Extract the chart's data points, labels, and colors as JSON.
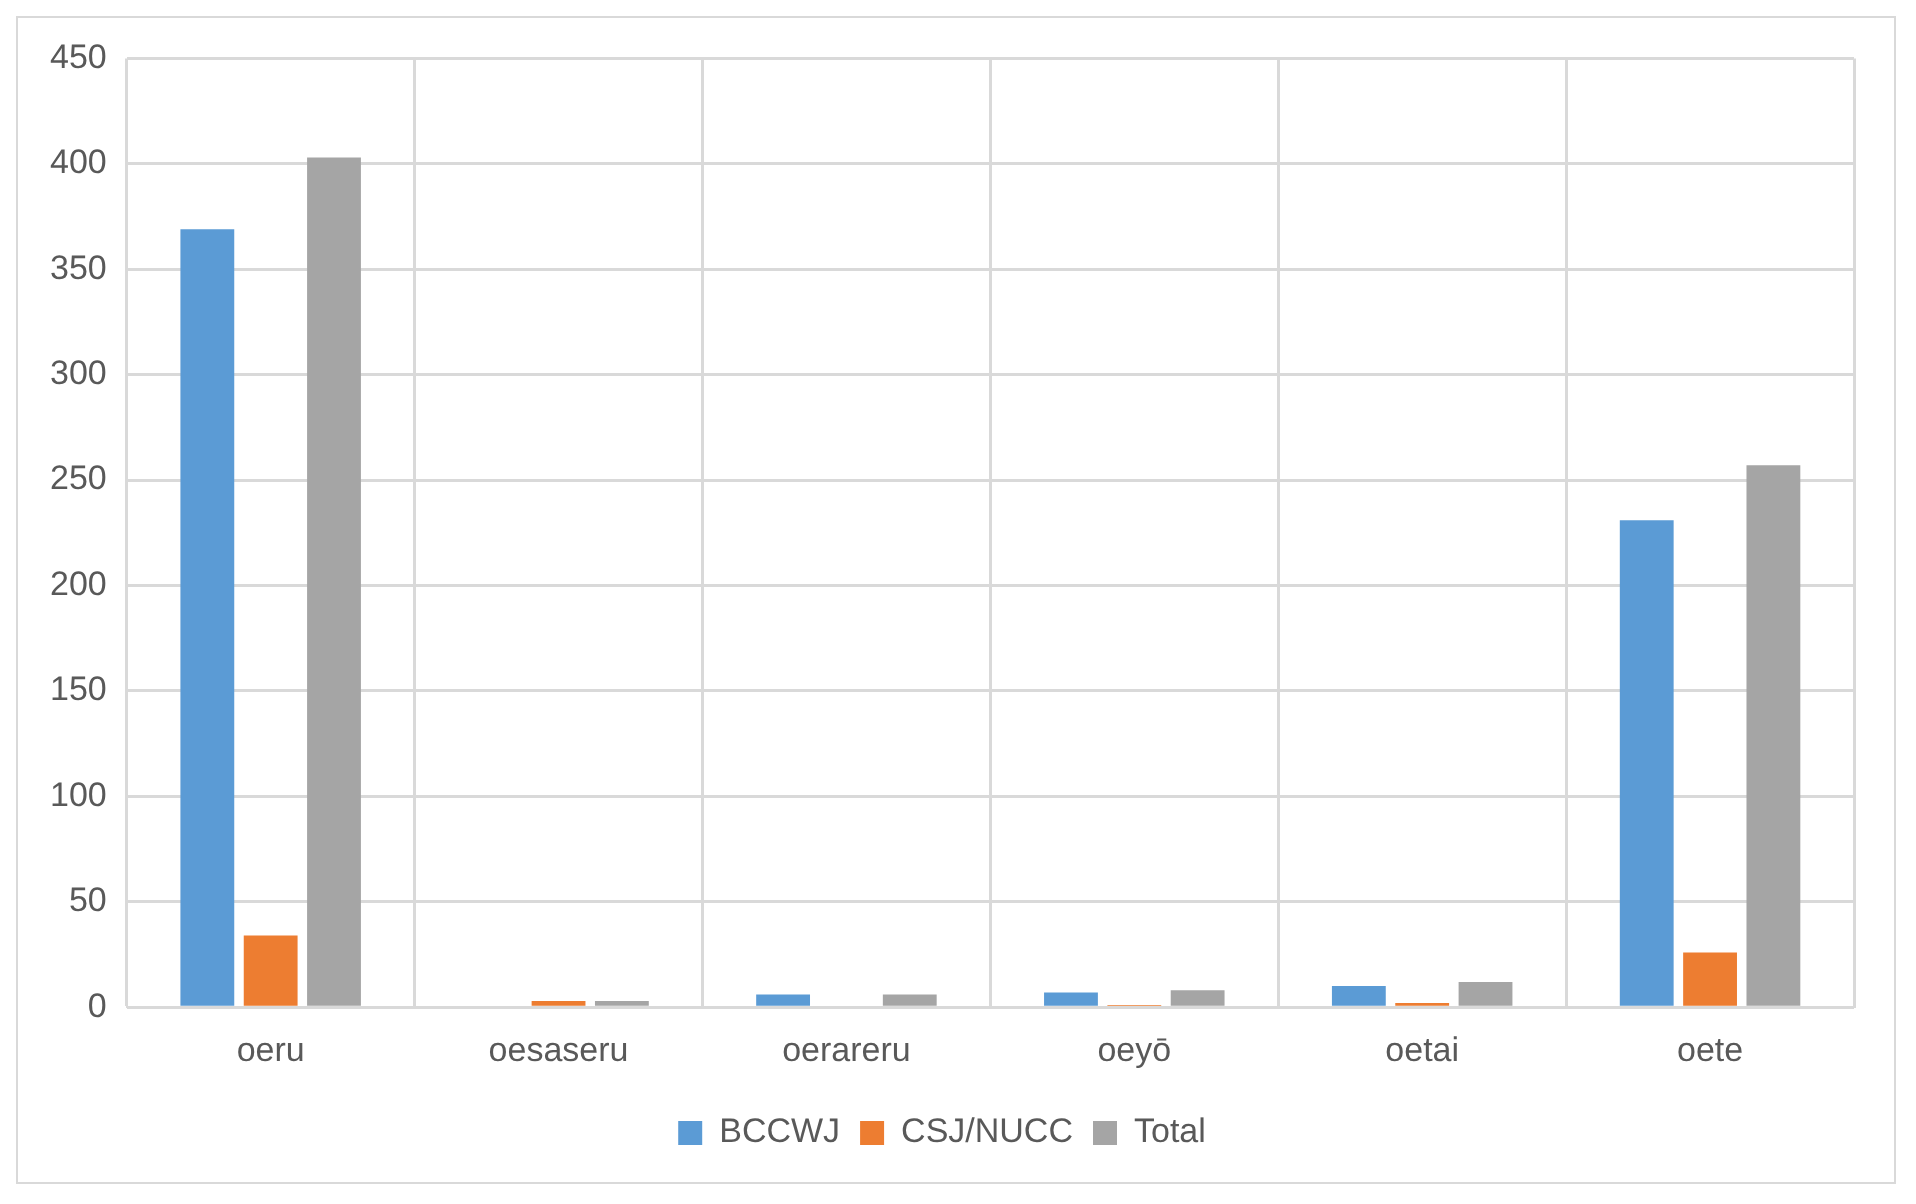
{
  "chart_data": {
    "type": "bar",
    "categories": [
      "oeru",
      "oesaseru",
      "oerareru",
      "oeyō",
      "oetai",
      "oete"
    ],
    "series": [
      {
        "name": "BCCWJ",
        "color": "#5b9bd5",
        "values": [
          369,
          0,
          6,
          7,
          10,
          231
        ]
      },
      {
        "name": "CSJ/NUCC",
        "color": "#ed7d31",
        "values": [
          34,
          3,
          0,
          1,
          2,
          26
        ]
      },
      {
        "name": "Total",
        "color": "#a5a5a5",
        "values": [
          403,
          3,
          6,
          8,
          12,
          257
        ]
      }
    ],
    "ylim": [
      0,
      450
    ],
    "yticks": [
      0,
      50,
      100,
      150,
      200,
      250,
      300,
      350,
      400,
      450
    ],
    "grid": true,
    "legend": "bottom"
  }
}
